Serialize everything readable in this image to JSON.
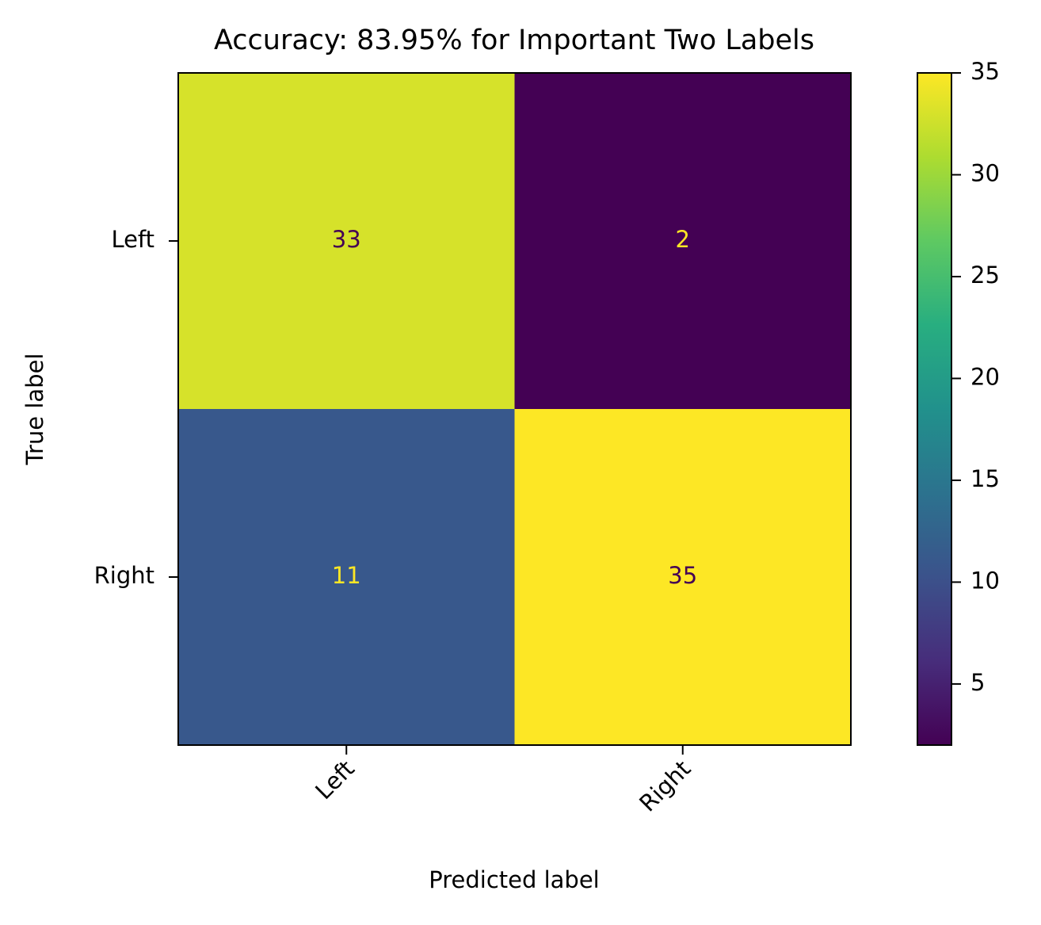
{
  "chart_data": {
    "type": "heatmap",
    "title": "Accuracy: 83.95% for Important Two Labels",
    "xlabel": "Predicted label",
    "ylabel": "True label",
    "x_categories": [
      "Left",
      "Right"
    ],
    "y_categories": [
      "Left",
      "Right"
    ],
    "values": [
      [
        33,
        2
      ],
      [
        11,
        35
      ]
    ],
    "colormap": "viridis",
    "clim": [
      2,
      35
    ],
    "cticks": [
      5,
      10,
      15,
      20,
      25,
      30,
      35
    ]
  }
}
